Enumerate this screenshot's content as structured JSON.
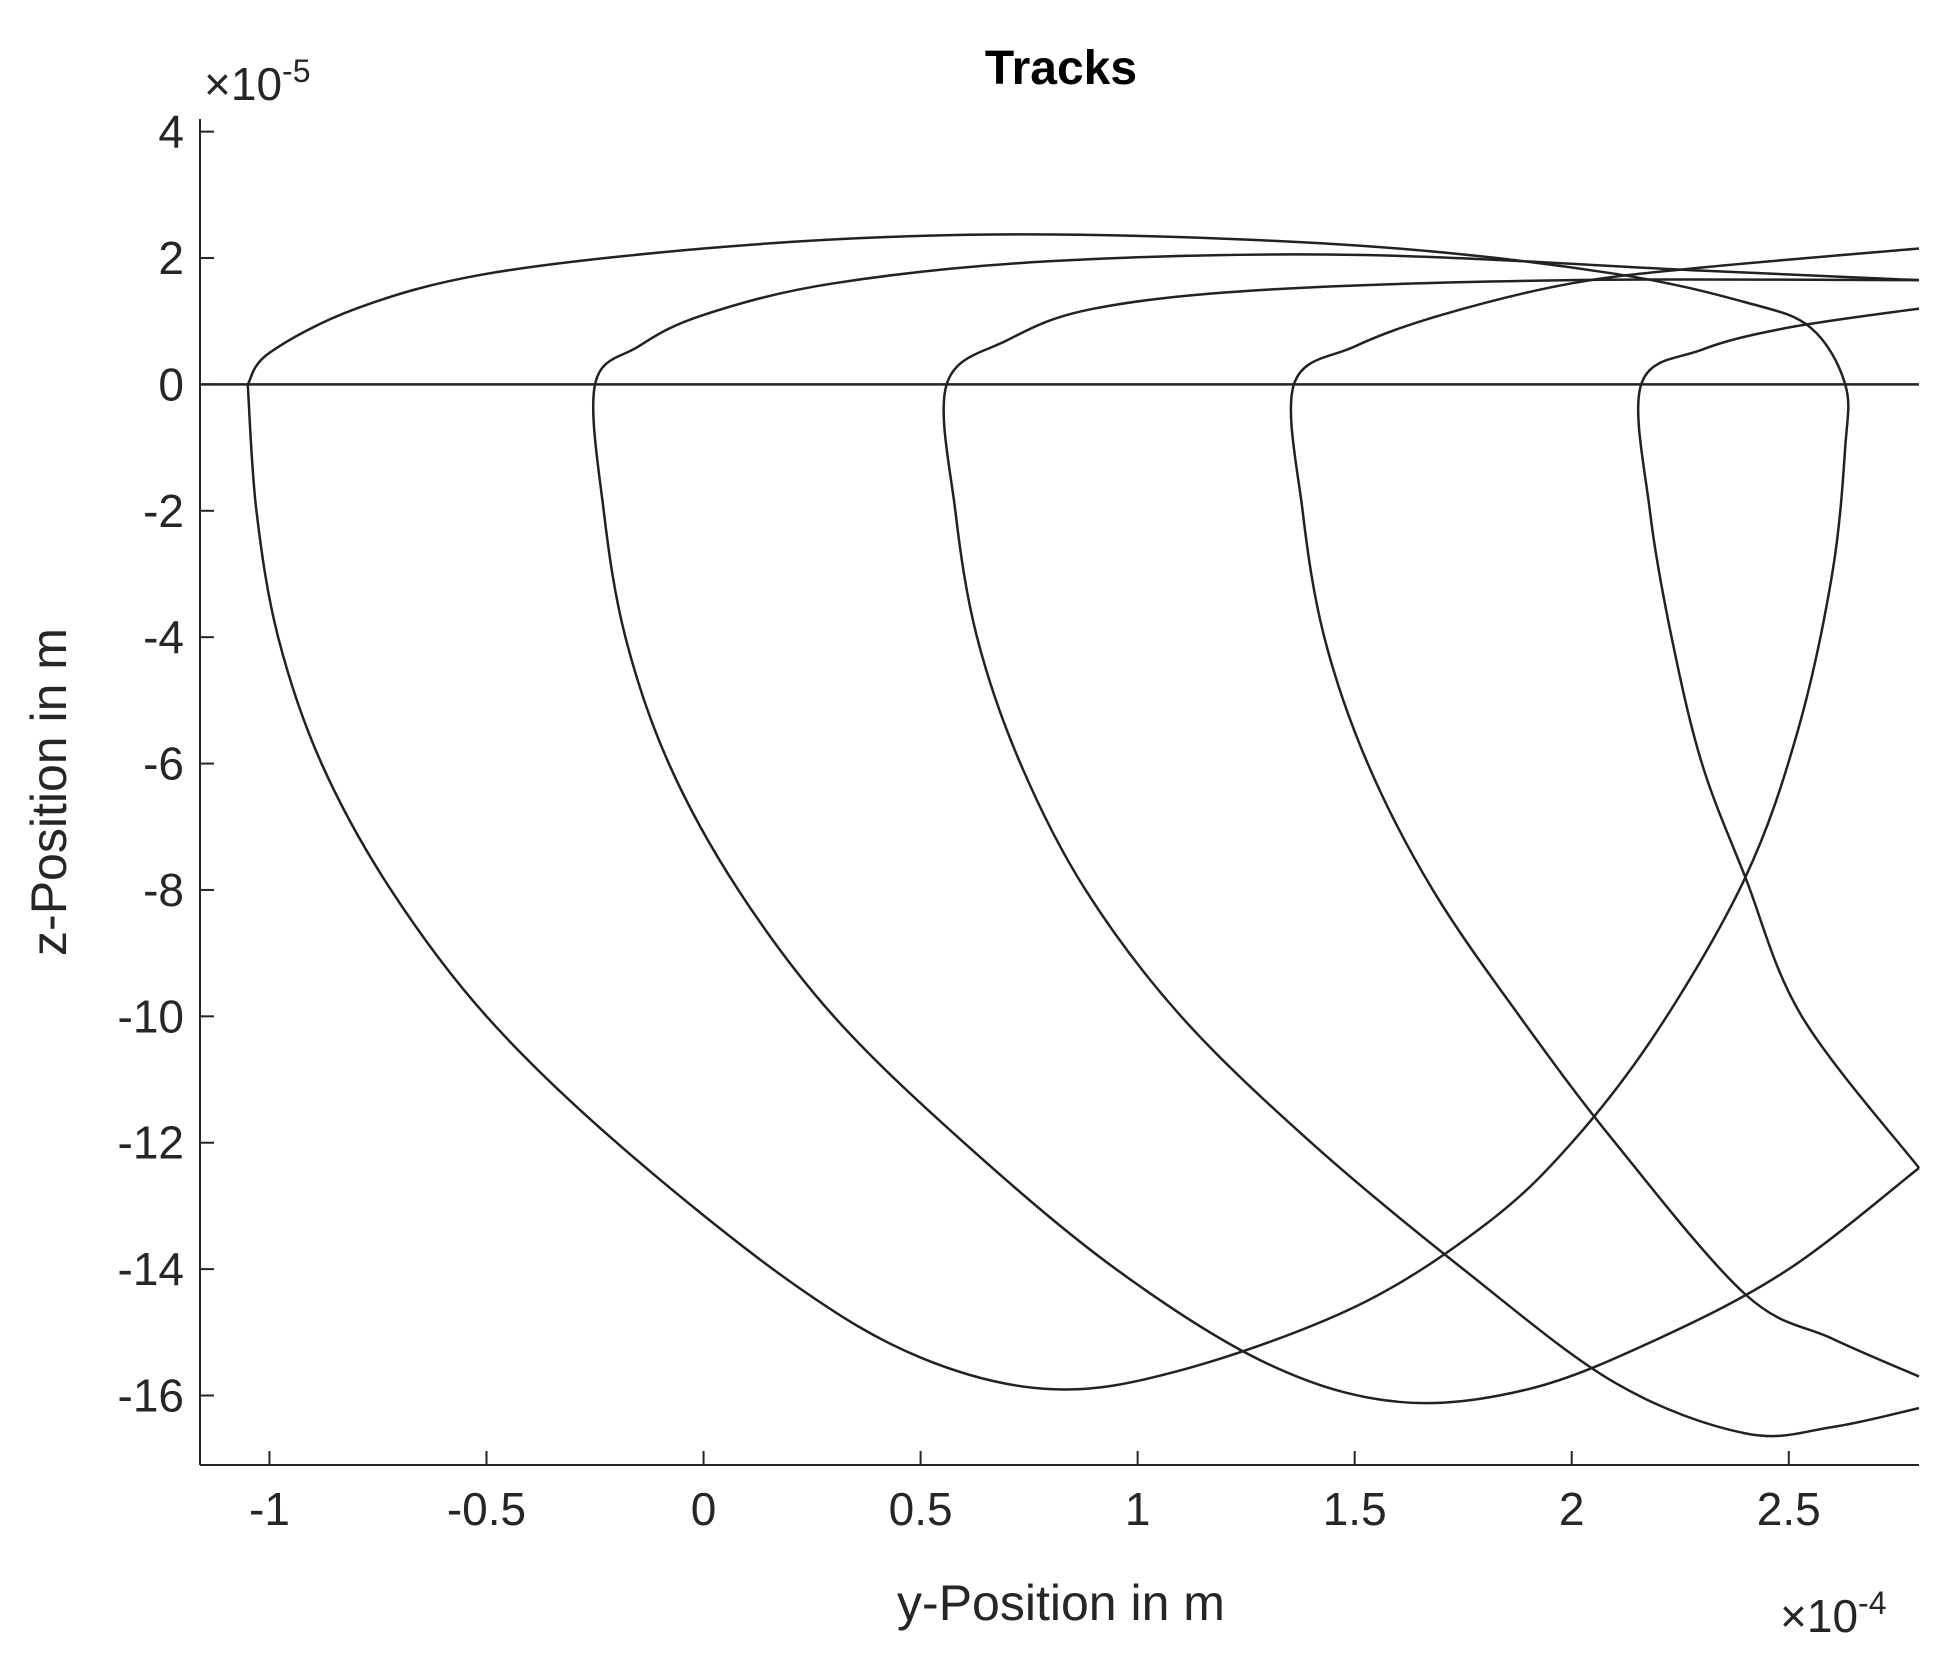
{
  "chart_data": {
    "type": "line",
    "title": "Tracks",
    "x_label": "y-Position in m",
    "y_label": "z-Position in m",
    "x_multiplier": {
      "base": "×10",
      "power": "-4"
    },
    "y_multiplier": {
      "base": "×10",
      "power": "-5"
    },
    "xlim": [
      -1.16,
      2.8
    ],
    "ylim": [
      -17.1,
      4.2
    ],
    "xticks": [
      -1,
      -0.5,
      0,
      0.5,
      1,
      1.5,
      2,
      2.5
    ],
    "yticks": [
      -16,
      -14,
      -12,
      -10,
      -8,
      -6,
      -4,
      -2,
      0,
      2,
      4
    ],
    "grid": false,
    "series": [
      {
        "color": "#222222",
        "x": [
          -1.16,
          2.8
        ],
        "values": [
          0,
          0
        ]
      },
      {
        "color": "#222222",
        "x": [
          -1.05,
          -1.03,
          -0.98,
          -0.88,
          -0.72,
          -0.5,
          -0.2,
          0.2,
          0.5,
          0.8,
          1.1,
          1.5,
          1.8,
          2.0,
          2.2,
          2.4,
          2.52,
          2.6,
          2.63,
          2.63,
          2.55,
          2.4,
          2.1,
          1.6,
          1.0,
          0.5,
          0,
          -0.5,
          -0.8,
          -1.0,
          -1.05
        ],
        "values": [
          0,
          -2,
          -4,
          -6,
          -8,
          -10,
          -12,
          -14.2,
          -15.4,
          -15.9,
          -15.6,
          -14.6,
          -13.3,
          -12,
          -10.2,
          -7.8,
          -5.5,
          -3,
          -1,
          0,
          0.9,
          1.3,
          1.75,
          2.15,
          2.35,
          2.35,
          2.15,
          1.75,
          1.2,
          0.5,
          0
        ]
      },
      {
        "color": "#222222",
        "x": [
          2.8,
          2.3,
          1.5,
          0.8,
          0.3,
          0,
          -0.15,
          -0.25,
          -0.23,
          -0.18,
          -0.08,
          0.08,
          0.3,
          0.6,
          0.95,
          1.3,
          1.6,
          1.9,
          2.2,
          2.5,
          2.8
        ],
        "values": [
          1.65,
          1.8,
          2.05,
          1.95,
          1.6,
          1.1,
          0.6,
          0,
          -2,
          -4,
          -6,
          -8,
          -10,
          -12,
          -14,
          -15.5,
          -16.1,
          -15.9,
          -15.1,
          -14,
          -12.4
        ]
      },
      {
        "color": "#222222",
        "x": [
          2.8,
          2.0,
          1.3,
          0.9,
          0.7,
          0.56,
          0.58,
          0.63,
          0.73,
          0.88,
          1.1,
          1.4,
          1.75,
          2.1,
          2.4,
          2.6,
          2.8
        ],
        "values": [
          1.65,
          1.65,
          1.5,
          1.2,
          0.7,
          0,
          -2,
          -4,
          -6,
          -8,
          -10,
          -12,
          -14,
          -15.8,
          -16.6,
          -16.5,
          -16.2
        ]
      },
      {
        "color": "#222222",
        "x": [
          2.8,
          2.3,
          2.0,
          1.7,
          1.5,
          1.36,
          1.38,
          1.43,
          1.53,
          1.68,
          1.88,
          2.1,
          2.4,
          2.6,
          2.8
        ],
        "values": [
          2.15,
          1.85,
          1.6,
          1.1,
          0.6,
          0,
          -2,
          -4,
          -6,
          -8,
          -10,
          -12,
          -14.4,
          -15.1,
          -15.7
        ]
      },
      {
        "color": "#222222",
        "x": [
          2.8,
          2.5,
          2.3,
          2.16,
          2.18,
          2.23,
          2.3,
          2.4,
          2.53,
          2.8
        ],
        "values": [
          1.2,
          0.9,
          0.55,
          0,
          -2,
          -4,
          -6,
          -7.8,
          -10,
          -12.4
        ]
      }
    ]
  }
}
